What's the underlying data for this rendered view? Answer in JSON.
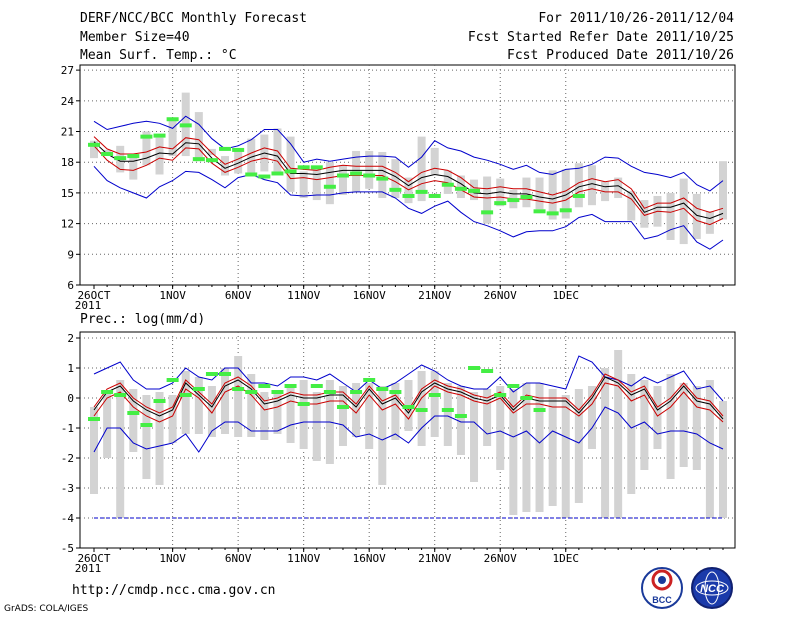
{
  "header": {
    "title": "DERF/NCC/BCC Monthly Forecast",
    "member_size": "Member Size=40",
    "variable": "Mean Surf. Temp.: °C",
    "period": "For 2011/10/26-2011/12/04",
    "started": "Fcst Started Refer Date 2011/10/25",
    "produced": "Fcst Produced Date 2011/10/26"
  },
  "footer": {
    "url": "http://cmdp.ncc.cma.gov.cn",
    "credit": "GrADS: COLA/IGES",
    "logo_bcc": "BCC",
    "logo_ncc": "NCC"
  },
  "colors": {
    "envelope": "#0000cc",
    "spread": "#cc0000",
    "mean": "#000000",
    "bar": "#d3d3d3",
    "marker": "#44ee44"
  },
  "chart_data": [
    {
      "type": "line",
      "title": "Mean Surf. Temp.: °C",
      "xlabels": [
        "26OCT",
        "1NOV",
        "6NOV",
        "11NOV",
        "16NOV",
        "21NOV",
        "26NOV",
        "1DEC"
      ],
      "xlabel_year": "2011",
      "ylim": [
        6,
        27.5
      ],
      "yticks": [
        6,
        9,
        12,
        15,
        18,
        21,
        24,
        27
      ],
      "series": [
        {
          "name": "upper envelope",
          "values": [
            22,
            21.2,
            21.5,
            21.8,
            22,
            21.8,
            21.3,
            22.5,
            21.7,
            20.3,
            19.3,
            19.6,
            20.2,
            21.2,
            21.2,
            19.8,
            18,
            18.3,
            18.1,
            18.3,
            18.5,
            18.6,
            18.6,
            18.5,
            17.5,
            18.5,
            20.1,
            19.4,
            19.1,
            18.5,
            18.2,
            17.8,
            17.3,
            17.7,
            17,
            16.8,
            17.3,
            17.4,
            17.8,
            18.5,
            18.4,
            17.6,
            17,
            16.8,
            16.5,
            17,
            15.8,
            15.2,
            16.2
          ]
        },
        {
          "name": "upper spread",
          "values": [
            20.5,
            19.3,
            18.8,
            18.8,
            19,
            19.5,
            19.3,
            20.4,
            20.2,
            18.9,
            17.8,
            18.3,
            18.9,
            19.4,
            19.1,
            17.4,
            17.3,
            17.2,
            17.5,
            17.7,
            17.6,
            17.6,
            17.6,
            17,
            16.1,
            17,
            17.4,
            17.2,
            16.5,
            15.5,
            15.4,
            15.6,
            15.4,
            15.4,
            15.1,
            14.8,
            15.2,
            16,
            16.4,
            16.1,
            16.3,
            15.4,
            13.5,
            14,
            14,
            14.5,
            13.5,
            13.1,
            13.5
          ]
        },
        {
          "name": "mean",
          "values": [
            20,
            18.8,
            18.1,
            18.1,
            18.4,
            18.9,
            18.8,
            19.9,
            19.8,
            18.4,
            17.4,
            17.9,
            18.5,
            18.9,
            18.6,
            16.9,
            16.9,
            16.8,
            17,
            17.2,
            17.2,
            17.2,
            17.2,
            16.6,
            15.7,
            16.5,
            16.8,
            16.6,
            15.9,
            15,
            14.9,
            15.1,
            14.9,
            14.9,
            14.6,
            14.4,
            14.8,
            15.6,
            15.9,
            15.6,
            15.7,
            14.9,
            13.1,
            13.6,
            13.6,
            14,
            12.8,
            12.5,
            13
          ]
        },
        {
          "name": "lower spread",
          "values": [
            19.6,
            18.2,
            17.3,
            17.2,
            17.7,
            18.4,
            18.2,
            19.4,
            19.3,
            17.9,
            17,
            17.5,
            18.1,
            18.4,
            18.1,
            16.4,
            16.5,
            16.3,
            16.5,
            16.7,
            16.7,
            16.7,
            16.7,
            16.1,
            15.3,
            15.9,
            16.2,
            16,
            15.3,
            14.6,
            14.5,
            14.6,
            14.4,
            14.4,
            14.2,
            14,
            14.3,
            15.1,
            15.4,
            15.1,
            15.1,
            14.4,
            12.8,
            13.2,
            13.1,
            13.5,
            12.3,
            11.9,
            12.5
          ]
        },
        {
          "name": "lower envelope",
          "values": [
            17.6,
            16.2,
            15.5,
            15,
            14.5,
            15.6,
            16.2,
            17.1,
            17,
            16.3,
            15.5,
            16.5,
            16.8,
            16.3,
            16,
            14.8,
            14.7,
            14.8,
            14.8,
            15,
            15.1,
            15.1,
            15.1,
            14.5,
            13.5,
            13,
            13.7,
            14.2,
            13.1,
            12.2,
            11.8,
            11.3,
            10.7,
            11.2,
            11.3,
            11.3,
            11.7,
            12.6,
            12.9,
            12.2,
            12.2,
            12.2,
            10.5,
            10.8,
            11.4,
            11.8,
            10.2,
            9.5,
            10.4
          ]
        },
        {
          "name": "member bars",
          "low": [
            18.4,
            18.7,
            17,
            16.3,
            17.7,
            16.8,
            18.6,
            18.6,
            18.1,
            18.7,
            16.7,
            16.9,
            16.9,
            17.1,
            17.1,
            15.1,
            14.5,
            14.3,
            13.9,
            14.8,
            15.1,
            15.4,
            14.5,
            14.5,
            14,
            14.2,
            16.8,
            14.9,
            14.5,
            14.3,
            12,
            13.7,
            13.5,
            13.6,
            13.4,
            12.4,
            12.5,
            13.6,
            13.8,
            14.2,
            14.5,
            12.3,
            11.6,
            11.7,
            10.4,
            10,
            10.5,
            11,
            12.4
          ],
          "high": [
            20.1,
            19.2,
            19.6,
            18.7,
            21,
            20.4,
            22.2,
            24.8,
            22.9,
            19.3,
            18.6,
            19.3,
            20.3,
            20.7,
            21.3,
            20.5,
            17.1,
            17.3,
            18,
            17.7,
            19.1,
            19.1,
            19,
            18.3,
            16.5,
            20.5,
            19.4,
            17.2,
            16.7,
            16.3,
            16.6,
            16.4,
            15.3,
            16.5,
            16.5,
            17.2,
            17.3,
            17.9,
            17.7,
            16.1,
            16.5,
            15.2,
            14.3,
            14.7,
            15,
            16.4,
            14.9,
            13.2,
            18.1
          ]
        },
        {
          "name": "green markers",
          "values": [
            19.7,
            18.8,
            18.4,
            18.6,
            20.5,
            20.6,
            22.2,
            21.6,
            18.3,
            18.2,
            19.3,
            19.2,
            16.8,
            16.6,
            16.9,
            17.1,
            17.5,
            17.5,
            15.6,
            16.7,
            16.9,
            16.7,
            16.4,
            15.3,
            14.7,
            15.1,
            14.7,
            15.8,
            15.4,
            15.2,
            13.1,
            14,
            14.3,
            14.6,
            13.2,
            13,
            13.3,
            14.7
          ]
        }
      ]
    },
    {
      "type": "line",
      "title": "Prec.: log(mm/d)",
      "xlabels": [
        "26OCT",
        "1NOV",
        "6NOV",
        "11NOV",
        "16NOV",
        "21NOV",
        "26NOV",
        "1DEC"
      ],
      "xlabel_year": "2011",
      "ylim": [
        -5,
        2.2
      ],
      "yticks": [
        -5,
        -4,
        -3,
        -2,
        -1,
        0,
        1,
        2
      ],
      "series": [
        {
          "name": "upper envelope",
          "values": [
            0.8,
            1,
            1.2,
            0.6,
            0.3,
            0.3,
            0.5,
            1,
            0.7,
            0.6,
            1,
            1,
            0.5,
            0.5,
            0.4,
            0.7,
            0.7,
            0.6,
            0.8,
            0.5,
            0.2,
            0.6,
            0.3,
            0.5,
            0.8,
            1.1,
            0.9,
            0.6,
            0.4,
            0.3,
            0.3,
            0.7,
            0.2,
            0.5,
            0.5,
            0.4,
            0.3,
            1.4,
            1.2,
            0.7,
            0.6,
            0.4,
            0.7,
            0.5,
            0.7,
            0.9,
            0.3,
            0.4,
            -0.1
          ]
        },
        {
          "name": "upper spread",
          "values": [
            -0.3,
            0.3,
            0.5,
            0,
            -0.3,
            -0.5,
            -0.3,
            0.6,
            0.2,
            -0.2,
            0.5,
            0.7,
            0.4,
            -0.1,
            0,
            0.2,
            0.1,
            0.1,
            0.2,
            0.2,
            -0.2,
            0.4,
            -0.1,
            0.1,
            -0.4,
            0.3,
            0.6,
            0.4,
            0.3,
            0.1,
            0,
            0.2,
            -0.3,
            0.1,
            0,
            0,
            0,
            -0.4,
            0.1,
            0.8,
            0.6,
            0.2,
            0.4,
            -0.3,
            0,
            0.5,
            0,
            -0.1,
            -0.6
          ]
        },
        {
          "name": "mean",
          "values": [
            -0.4,
            0.2,
            0.4,
            -0.1,
            -0.4,
            -0.6,
            -0.4,
            0.5,
            0.1,
            -0.3,
            0.4,
            0.6,
            0.3,
            -0.2,
            -0.1,
            0.1,
            0,
            0,
            0.1,
            0.1,
            -0.3,
            0.3,
            -0.2,
            0,
            -0.5,
            0.2,
            0.5,
            0.3,
            0.2,
            0,
            -0.1,
            0.1,
            -0.4,
            0,
            -0.1,
            -0.1,
            -0.1,
            -0.5,
            0,
            0.7,
            0.5,
            0.1,
            0.3,
            -0.4,
            -0.1,
            0.4,
            -0.1,
            -0.2,
            -0.7
          ]
        },
        {
          "name": "lower spread",
          "values": [
            -0.6,
            0,
            0.2,
            -0.3,
            -0.6,
            -0.8,
            -0.6,
            0.3,
            0,
            -0.5,
            0.2,
            0.4,
            0.1,
            -0.4,
            -0.3,
            -0.1,
            -0.2,
            -0.2,
            -0.1,
            -0.1,
            -0.5,
            0.1,
            -0.4,
            -0.2,
            -0.7,
            0,
            0.4,
            0.2,
            0.1,
            -0.1,
            -0.2,
            0,
            -0.5,
            -0.2,
            -0.2,
            -0.3,
            -0.3,
            -0.6,
            -0.2,
            0.5,
            0.4,
            -0.1,
            0.1,
            -0.6,
            -0.3,
            0.2,
            -0.3,
            -0.4,
            -0.8
          ]
        },
        {
          "name": "lower envelope",
          "values": [
            -1.8,
            -1,
            -1,
            -1.5,
            -1.7,
            -1.6,
            -1.5,
            -1.2,
            -1.8,
            -1.1,
            -0.8,
            -0.8,
            -1.1,
            -1.1,
            -1.1,
            -0.9,
            -0.8,
            -0.8,
            -0.8,
            -0.9,
            -1.3,
            -1.2,
            -1.4,
            -1.2,
            -1.5,
            -1,
            -0.6,
            -0.6,
            -0.8,
            -0.8,
            -1.2,
            -1.1,
            -1.3,
            -1.1,
            -1.5,
            -1.1,
            -1.3,
            -1.5,
            -1,
            -0.3,
            -0.5,
            -1,
            -0.8,
            -1.2,
            -1.1,
            -1.1,
            -1.2,
            -1.5,
            -1.7
          ]
        },
        {
          "name": "member bars",
          "low": [
            -3.2,
            -2,
            -4,
            -1.8,
            -2.7,
            -2.9,
            -1.5,
            -1.2,
            -1.2,
            -1.3,
            -1.2,
            -1.3,
            -1.3,
            -1.4,
            -1.2,
            -1.5,
            -1.7,
            -2.1,
            -2.2,
            -1.6,
            -1.3,
            -1.7,
            -2.9,
            -1.4,
            -1.1,
            -1.6,
            -1.3,
            -1.6,
            -1.9,
            -2.8,
            -1.6,
            -2.4,
            -3.9,
            -3.8,
            -3.8,
            -3.6,
            -4,
            -3.5,
            -1.7,
            -4,
            -4,
            -3.2,
            -2.4,
            -1.7,
            -2.7,
            -2.3,
            -2.4,
            -4,
            -4
          ]
        },
        {
          "name": "member bars high",
          "values": [
            -0.3,
            0.2,
            0.6,
            0.3,
            0.1,
            0.2,
            0.1,
            0.9,
            0.7,
            0.4,
            1,
            1.4,
            0.8,
            0.2,
            0.2,
            0.4,
            0.6,
            0.2,
            0.6,
            0.4,
            0.5,
            0.5,
            0.4,
            0.5,
            0.6,
            0.9,
            0.9,
            0.5,
            0.4,
            0.2,
            0.3,
            0.4,
            0.3,
            0.5,
            0.5,
            0.3,
            0.1,
            0.3,
            0.4,
            1,
            1.6,
            0.8,
            0.6,
            0.4,
            0.8,
            0.5,
            0.4,
            0.6,
            -0.1
          ]
        },
        {
          "name": "green markers",
          "values": [
            -0.7,
            0.2,
            0.1,
            -0.5,
            -0.9,
            -0.1,
            0.6,
            0.1,
            0.3,
            0.8,
            0.8,
            0.3,
            0.2,
            0.4,
            0.2,
            0.4,
            -0.2,
            0.4,
            0.2,
            -0.3,
            0.2,
            0.6,
            0.3,
            0.2,
            -0.3,
            -0.4,
            0.1,
            -0.4,
            -0.6,
            1,
            0.9,
            0.1,
            0.4,
            0,
            -0.4
          ]
        }
      ]
    }
  ]
}
